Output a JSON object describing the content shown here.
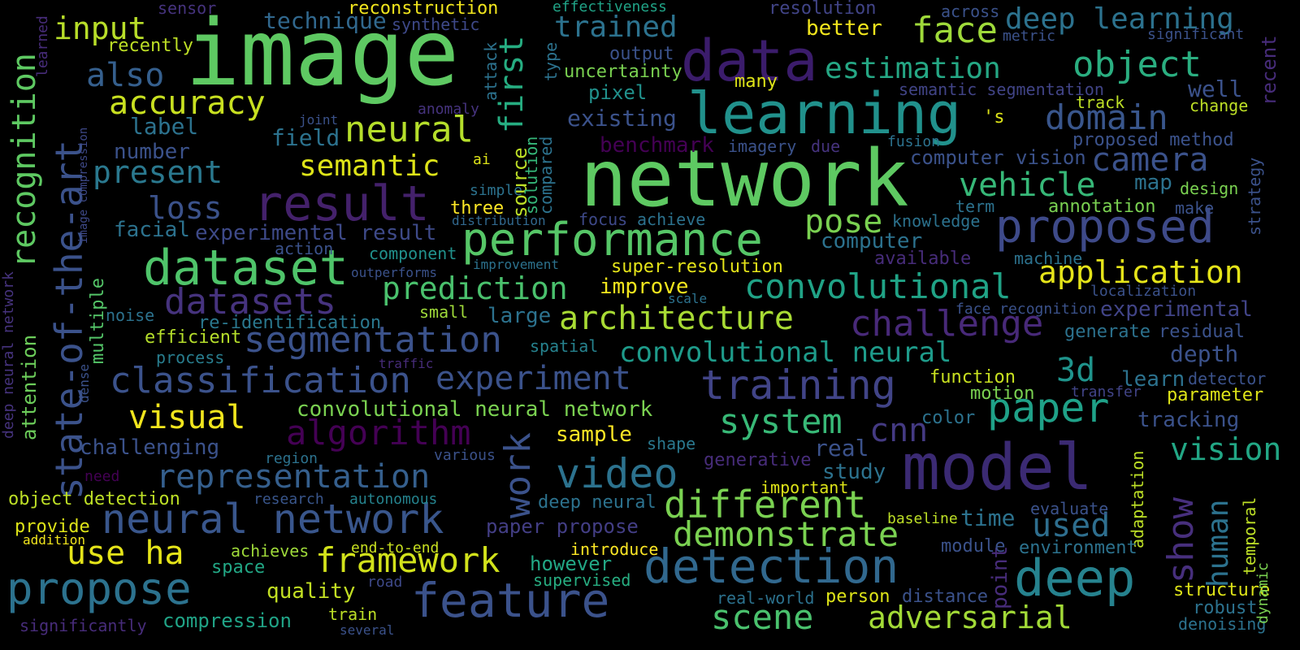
{
  "words": [
    {
      "text": "image",
      "color": "#5ec962"
    },
    {
      "text": "network",
      "color": "#5ec962"
    },
    {
      "text": "data",
      "color": "#3b1c6b"
    },
    {
      "text": "learning",
      "color": "#21918c"
    },
    {
      "text": "model",
      "color": "#3b2a73"
    },
    {
      "text": "result",
      "color": "#44216b"
    },
    {
      "text": "performance",
      "color": "#56c667"
    },
    {
      "text": "dataset",
      "color": "#4fc46a"
    },
    {
      "text": "deep",
      "color": "#26828e"
    },
    {
      "text": "proposed",
      "color": "#3e4a89"
    },
    {
      "text": "detection",
      "color": "#31688e"
    },
    {
      "text": "feature",
      "color": "#3b528b"
    },
    {
      "text": "object",
      "color": "#2aae80"
    },
    {
      "text": "deep learning",
      "color": "#2c728e"
    },
    {
      "text": "neural",
      "color": "#b5de2b"
    },
    {
      "text": "segmentation",
      "color": "#3b528b"
    },
    {
      "text": "classification",
      "color": "#3b528b"
    },
    {
      "text": "training",
      "color": "#414487"
    },
    {
      "text": "propose",
      "color": "#2c728e"
    },
    {
      "text": "neural network",
      "color": "#39568c"
    },
    {
      "text": "recognition",
      "color": "#5ec962"
    },
    {
      "text": "state-of-the-art",
      "color": "#3b528b"
    },
    {
      "text": "convolutional",
      "color": "#20a386"
    },
    {
      "text": "estimation",
      "color": "#25a784"
    },
    {
      "text": "challenge",
      "color": "#482979"
    },
    {
      "text": "architecture",
      "color": "#a8db34"
    },
    {
      "text": "paper",
      "color": "#1fa188"
    },
    {
      "text": "system",
      "color": "#38b977"
    },
    {
      "text": "video",
      "color": "#2c728e"
    },
    {
      "text": "different",
      "color": "#7ad151"
    },
    {
      "text": "demonstrate",
      "color": "#7ad151"
    },
    {
      "text": "scene",
      "color": "#4ac16d"
    },
    {
      "text": "adversarial",
      "color": "#a2da37"
    },
    {
      "text": "framework",
      "color": "#d2e21b"
    },
    {
      "text": "use ha",
      "color": "#e5e419"
    },
    {
      "text": "work",
      "color": "#3b528b"
    },
    {
      "text": "algorithm",
      "color": "#440154"
    },
    {
      "text": "representation",
      "color": "#355f8d"
    },
    {
      "text": "experiment",
      "color": "#3b528b"
    },
    {
      "text": "first",
      "color": "#26ad81"
    },
    {
      "text": "face",
      "color": "#9fda3a"
    },
    {
      "text": "trained",
      "color": "#2c728e"
    },
    {
      "text": "domain",
      "color": "#39568c"
    },
    {
      "text": "camera",
      "color": "#3b528b"
    },
    {
      "text": "vehicle",
      "color": "#37b878"
    },
    {
      "text": "pose",
      "color": "#7ad151"
    },
    {
      "text": "application",
      "color": "#e5e419"
    },
    {
      "text": "convolutional neural",
      "color": "#1e9b8a"
    },
    {
      "text": "show",
      "color": "#472f7d"
    },
    {
      "text": "human",
      "color": "#2c728e"
    },
    {
      "text": "vision",
      "color": "#22a785"
    },
    {
      "text": "used",
      "color": "#2e6e8e"
    },
    {
      "text": "3d",
      "color": "#1f948c"
    },
    {
      "text": "cnn",
      "color": "#443a83"
    },
    {
      "text": "prediction",
      "color": "#4ac16d"
    },
    {
      "text": "datasets",
      "color": "#46337e"
    },
    {
      "text": "semantic",
      "color": "#dde318"
    },
    {
      "text": "accuracy",
      "color": "#c8e020"
    },
    {
      "text": "present",
      "color": "#2a788e"
    },
    {
      "text": "loss",
      "color": "#3b528b"
    },
    {
      "text": "also",
      "color": "#355f8d"
    },
    {
      "text": "input",
      "color": "#b8de29"
    },
    {
      "text": "visual",
      "color": "#f1e51d"
    },
    {
      "text": "attention",
      "color": "#6ccd5a"
    },
    {
      "text": "multiple",
      "color": "#54c568"
    },
    {
      "text": "convolutional neural network",
      "color": "#7ad151"
    },
    {
      "text": "experimental result",
      "color": "#3e4a89"
    },
    {
      "text": "facial",
      "color": "#2c728e"
    },
    {
      "text": "re-identification",
      "color": "#2a788e"
    },
    {
      "text": "efficient",
      "color": "#b5de2b"
    },
    {
      "text": "process",
      "color": "#287d8e"
    },
    {
      "text": "challenging",
      "color": "#3b528b"
    },
    {
      "text": "region",
      "color": "#2c728e"
    },
    {
      "text": "object detection",
      "color": "#bddf26"
    },
    {
      "text": "provide",
      "color": "#dde318"
    },
    {
      "text": "addition",
      "color": "#f1e51d"
    },
    {
      "text": "achieves",
      "color": "#9fda3a"
    },
    {
      "text": "space",
      "color": "#22a785"
    },
    {
      "text": "quality",
      "color": "#c2df23"
    },
    {
      "text": "compression",
      "color": "#20a386"
    },
    {
      "text": "train",
      "color": "#bddf26"
    },
    {
      "text": "significantly",
      "color": "#472c7a"
    },
    {
      "text": "several",
      "color": "#3b528b"
    },
    {
      "text": "road",
      "color": "#3e4989"
    },
    {
      "text": "supervised",
      "color": "#27ad81"
    },
    {
      "text": "however",
      "color": "#22a785"
    },
    {
      "text": "introduce",
      "color": "#fde725"
    },
    {
      "text": "end-to-end",
      "color": "#c8e020"
    },
    {
      "text": "autonomous",
      "color": "#25838e"
    },
    {
      "text": "research",
      "color": "#39568c"
    },
    {
      "text": "deep neural",
      "color": "#2c728e"
    },
    {
      "text": "paper propose",
      "color": "#433e85"
    },
    {
      "text": "sample",
      "color": "#fde725"
    },
    {
      "text": "shape",
      "color": "#2a788e"
    },
    {
      "text": "various",
      "color": "#3b528b"
    },
    {
      "text": "large",
      "color": "#2c728e"
    },
    {
      "text": "small",
      "color": "#9fda3a"
    },
    {
      "text": "spatial",
      "color": "#26828e"
    },
    {
      "text": "three",
      "color": "#fde725"
    },
    {
      "text": "distribution",
      "color": "#31688e"
    },
    {
      "text": "component",
      "color": "#21918c"
    },
    {
      "text": "outperforms",
      "color": "#3b528b"
    },
    {
      "text": "action",
      "color": "#3b528b"
    },
    {
      "text": "improvement",
      "color": "#2c728e"
    },
    {
      "text": "focus",
      "color": "#3e4989"
    },
    {
      "text": "achieve",
      "color": "#2c728e"
    },
    {
      "text": "super-resolution",
      "color": "#e5e419"
    },
    {
      "text": "improve",
      "color": "#f1e51d"
    },
    {
      "text": "scale",
      "color": "#2c728e"
    },
    {
      "text": "traffic",
      "color": "#472c7a"
    },
    {
      "text": "simple",
      "color": "#2c728e"
    },
    {
      "text": "ai",
      "color": "#dde318"
    },
    {
      "text": "source",
      "color": "#bddf26"
    },
    {
      "text": "solution",
      "color": "#35b779"
    },
    {
      "text": "compared",
      "color": "#2c728e"
    },
    {
      "text": "label",
      "color": "#2c728e"
    },
    {
      "text": "number",
      "color": "#3b528b"
    },
    {
      "text": "field",
      "color": "#2c728e"
    },
    {
      "text": "joint",
      "color": "#3b528b"
    },
    {
      "text": "anomaly",
      "color": "#46337e"
    },
    {
      "text": "attack",
      "color": "#2c728e"
    },
    {
      "text": "type",
      "color": "#2c728e"
    },
    {
      "text": "technique",
      "color": "#31688e"
    },
    {
      "text": "synthetic",
      "color": "#3e4989"
    },
    {
      "text": "reconstruction",
      "color": "#f1e51d"
    },
    {
      "text": "sensor",
      "color": "#46337e"
    },
    {
      "text": "recently",
      "color": "#bddf26"
    },
    {
      "text": "learned",
      "color": "#472c7a"
    },
    {
      "text": "image compression",
      "color": "#3e4989"
    },
    {
      "text": "deep neural network",
      "color": "#46337e"
    },
    {
      "text": "dense",
      "color": "#3b528b"
    },
    {
      "text": "noise",
      "color": "#2c728e"
    },
    {
      "text": "need",
      "color": "#440154"
    },
    {
      "text": "effectiveness",
      "color": "#20a386"
    },
    {
      "text": "output",
      "color": "#3b528b"
    },
    {
      "text": "uncertainty",
      "color": "#7ad151"
    },
    {
      "text": "pixel",
      "color": "#21918c"
    },
    {
      "text": "many",
      "color": "#dde318"
    },
    {
      "text": "existing",
      "color": "#3b528b"
    },
    {
      "text": "benchmark",
      "color": "#440154"
    },
    {
      "text": "imagery",
      "color": "#3b528b"
    },
    {
      "text": "due",
      "color": "#46337e"
    },
    {
      "text": "resolution",
      "color": "#414487"
    },
    {
      "text": "better",
      "color": "#f1e51d"
    },
    {
      "text": "across",
      "color": "#3b528b"
    },
    {
      "text": "metric",
      "color": "#3b528b"
    },
    {
      "text": "significant",
      "color": "#3b528b"
    },
    {
      "text": "semantic segmentation",
      "color": "#414487"
    },
    {
      "text": "well",
      "color": "#3b528b"
    },
    {
      "text": "recent",
      "color": "#472c7a"
    },
    {
      "text": "track",
      "color": "#bddf26"
    },
    {
      "text": "change",
      "color": "#bddf26"
    },
    {
      "text": "'s",
      "color": "#dde318"
    },
    {
      "text": "fusion",
      "color": "#2c728e"
    },
    {
      "text": "computer vision",
      "color": "#3b528b"
    },
    {
      "text": "proposed method",
      "color": "#3b528b"
    },
    {
      "text": "map",
      "color": "#2c728e"
    },
    {
      "text": "design",
      "color": "#7ad151"
    },
    {
      "text": "term",
      "color": "#2c728e"
    },
    {
      "text": "annotation",
      "color": "#7ad151"
    },
    {
      "text": "make",
      "color": "#3b528b"
    },
    {
      "text": "strategy",
      "color": "#3b528b"
    },
    {
      "text": "knowledge",
      "color": "#2c728e"
    },
    {
      "text": "computer",
      "color": "#2c728e"
    },
    {
      "text": "machine",
      "color": "#2c728e"
    },
    {
      "text": "available",
      "color": "#472c7a"
    },
    {
      "text": "localization",
      "color": "#3b528b"
    },
    {
      "text": "experimental",
      "color": "#414487"
    },
    {
      "text": "face recognition",
      "color": "#3b528b"
    },
    {
      "text": "generate",
      "color": "#2c728e"
    },
    {
      "text": "residual",
      "color": "#3b528b"
    },
    {
      "text": "depth",
      "color": "#3b528b"
    },
    {
      "text": "learn",
      "color": "#2c728e"
    },
    {
      "text": "detector",
      "color": "#3b528b"
    },
    {
      "text": "parameter",
      "color": "#dde318"
    },
    {
      "text": "transfer",
      "color": "#414487"
    },
    {
      "text": "function",
      "color": "#c8e020"
    },
    {
      "text": "motion",
      "color": "#7ad151"
    },
    {
      "text": "tracking",
      "color": "#3b528b"
    },
    {
      "text": "color",
      "color": "#2c728e"
    },
    {
      "text": "real",
      "color": "#3b528b"
    },
    {
      "text": "study",
      "color": "#2c728e"
    },
    {
      "text": "generative",
      "color": "#472c7a"
    },
    {
      "text": "important",
      "color": "#dde318"
    },
    {
      "text": "time",
      "color": "#2c728e"
    },
    {
      "text": "baseline",
      "color": "#bddf26"
    },
    {
      "text": "evaluate",
      "color": "#3b528b"
    },
    {
      "text": "adaptation",
      "color": "#bddf26"
    },
    {
      "text": "point",
      "color": "#472c7a"
    },
    {
      "text": "module",
      "color": "#3b528b"
    },
    {
      "text": "environment",
      "color": "#2c728e"
    },
    {
      "text": "temporal",
      "color": "#bddf26"
    },
    {
      "text": "structure",
      "color": "#dde318"
    },
    {
      "text": "robust",
      "color": "#2c728e"
    },
    {
      "text": "denoising",
      "color": "#2c728e"
    },
    {
      "text": "dynamic",
      "color": "#7ad151"
    },
    {
      "text": "real-world",
      "color": "#2c728e"
    },
    {
      "text": "person",
      "color": "#dde318"
    },
    {
      "text": "distance",
      "color": "#3b528b"
    }
  ]
}
